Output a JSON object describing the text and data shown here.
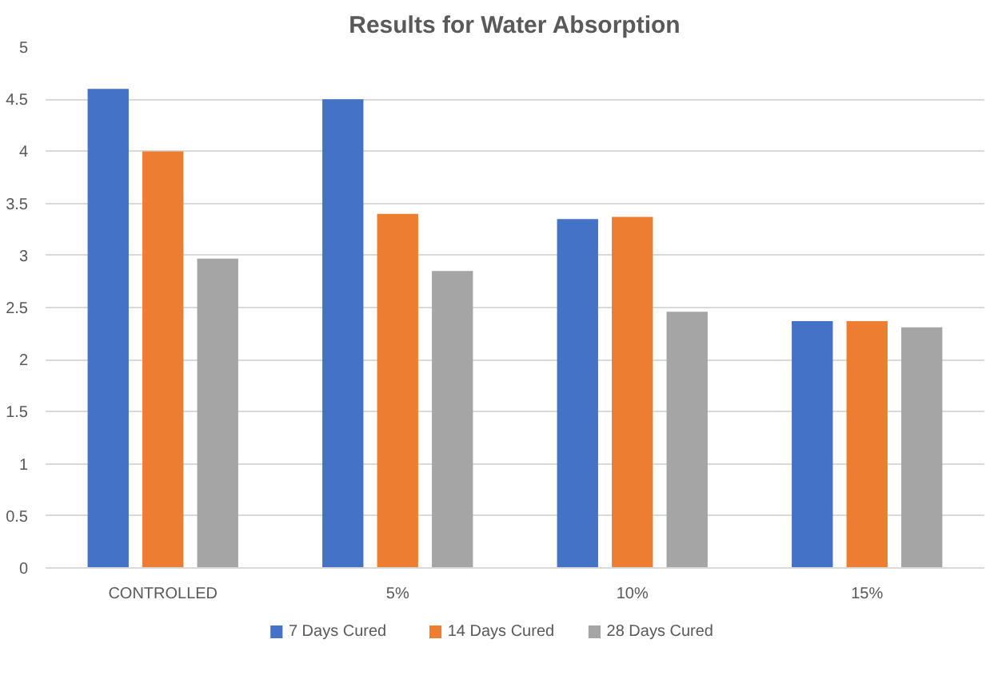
{
  "chart_data": {
    "type": "bar",
    "title": "Results for Water Absorption",
    "categories": [
      "CONTROLLED",
      "5%",
      "10%",
      "15%"
    ],
    "series": [
      {
        "name": "7 Days Cured",
        "color": "#4472c4",
        "values": [
          4.6,
          4.5,
          3.35,
          2.37
        ]
      },
      {
        "name": "14 Days Cured",
        "color": "#ed7d31",
        "values": [
          4.0,
          3.4,
          3.37,
          2.37
        ]
      },
      {
        "name": "28 Days Cured",
        "color": "#a5a5a5",
        "values": [
          2.97,
          2.85,
          2.46,
          2.31
        ]
      }
    ],
    "ylim": [
      0,
      5
    ],
    "yticks": [
      0,
      0.5,
      1,
      1.5,
      2,
      2.5,
      3,
      3.5,
      4,
      4.5,
      5
    ],
    "grid": "y",
    "legend": "bottom"
  }
}
